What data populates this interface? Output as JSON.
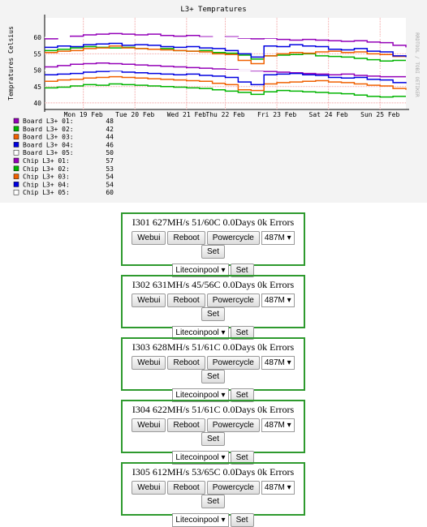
{
  "chart_data": {
    "type": "line",
    "title": "L3+ Tempratures",
    "y_label": "Tempratures Celsius",
    "watermark": "RRDTOOL / TOBI OETIKER",
    "categories": [
      null,
      null,
      null,
      "Mon 19 Feb",
      null,
      null,
      null,
      "Tue 20 Feb",
      null,
      null,
      null,
      "Wed 21 Feb",
      null,
      null,
      "Thu 22 Feb",
      null,
      null,
      null,
      "Fri 23 Feb",
      null,
      null,
      null,
      "Sat 24 Feb",
      null,
      null,
      null,
      "Sun 25 Feb",
      null,
      null
    ],
    "ylim": [
      38,
      66
    ],
    "yticks": [
      40,
      45,
      50,
      55,
      60
    ],
    "grid": true,
    "series": [
      {
        "name": "Board L3+ 01:",
        "last": 48,
        "color": "#9400b8",
        "values": [
          51,
          51.4,
          51.8,
          52,
          52.2,
          52,
          51.8,
          51.6,
          51.4,
          51.2,
          51,
          50.8,
          50.6,
          50.4,
          50.2,
          50,
          49.8,
          49.6,
          49.4,
          49.2,
          49,
          48.8,
          48.6,
          48.8,
          48.4,
          48.2,
          48,
          48,
          48
        ]
      },
      {
        "name": "Board L3+ 02:",
        "last": 42,
        "color": "#00b400",
        "values": [
          44.6,
          44.8,
          45.2,
          45.6,
          45.4,
          45.8,
          45.6,
          45.4,
          45.2,
          45,
          44.8,
          44.6,
          44.4,
          44,
          43.6,
          43.2,
          42.6,
          43.4,
          43.8,
          43.6,
          43.4,
          43.2,
          43,
          42.8,
          42.4,
          42,
          41.8,
          42,
          42
        ]
      },
      {
        "name": "Board L3+ 03:",
        "last": 44,
        "color": "#f06000",
        "values": [
          46.6,
          47,
          47.2,
          47.6,
          47.8,
          48,
          47.8,
          47.6,
          47.4,
          47.2,
          47,
          46.8,
          46.6,
          46,
          45.6,
          44,
          43.8,
          45.8,
          46.2,
          46.4,
          46.6,
          46.8,
          46.4,
          46.2,
          45.8,
          45.4,
          45.2,
          44.4,
          44
        ]
      },
      {
        "name": "Board L3+ 04:",
        "last": 46,
        "color": "#0000e0",
        "values": [
          48.6,
          48.8,
          49,
          49.4,
          49.6,
          49.8,
          49.4,
          49.2,
          49,
          48.8,
          48.6,
          48.8,
          48.4,
          48.2,
          47.8,
          46.4,
          45.6,
          48.6,
          48.8,
          49,
          48.6,
          48.4,
          47.8,
          47.6,
          47.8,
          47.2,
          47,
          46.2,
          46
        ]
      },
      {
        "name": "Board L3+ 05:",
        "last": 50,
        "color": "#ffffff",
        "values": [
          50,
          50,
          50,
          50,
          50,
          50,
          50,
          50,
          50,
          50,
          50,
          50,
          50,
          50,
          50,
          50,
          50,
          50,
          50,
          50,
          50,
          50,
          50,
          50,
          50,
          50,
          50,
          50,
          50
        ]
      },
      {
        "name": "Chip L3+ 01:",
        "last": 57,
        "color": "#9400b8",
        "values": [
          59.6,
          60,
          60.4,
          60.8,
          61,
          61.2,
          61,
          60.8,
          61,
          60.6,
          60.4,
          60.6,
          60.2,
          60,
          60.2,
          59.8,
          59.6,
          59.8,
          59.4,
          59.2,
          59.4,
          59.2,
          59,
          58.8,
          59,
          58.6,
          58.4,
          57.6,
          57
        ]
      },
      {
        "name": "Chip L3+ 02:",
        "last": 53,
        "color": "#00b400",
        "values": [
          56,
          56.4,
          56.8,
          57.2,
          57,
          56.8,
          57,
          56.6,
          56.4,
          56.6,
          56,
          55.8,
          56,
          55.4,
          55.2,
          54.6,
          53.4,
          54.4,
          54.6,
          54.8,
          55,
          54.4,
          54.2,
          54,
          53.6,
          53.2,
          52.8,
          53,
          53
        ]
      },
      {
        "name": "Chip L3+ 03:",
        "last": 54,
        "color": "#f06000",
        "values": [
          55.4,
          55.8,
          56,
          56.6,
          56.8,
          57.4,
          56.8,
          56.6,
          56.4,
          56.2,
          56,
          55.8,
          55.6,
          55,
          54.8,
          53,
          52,
          54.4,
          55,
          55.4,
          55.2,
          55.6,
          55.8,
          55.4,
          55.6,
          55,
          54.8,
          54.2,
          54
        ]
      },
      {
        "name": "Chip L3+ 04:",
        "last": 54,
        "color": "#0000e0",
        "values": [
          57,
          57.4,
          57.2,
          57.8,
          58,
          58.2,
          57.6,
          57.8,
          57.6,
          57.2,
          57,
          57.2,
          56.8,
          56.6,
          56,
          55,
          54,
          57.4,
          57.2,
          57.8,
          57.4,
          57.2,
          56.4,
          56.2,
          56.6,
          55.8,
          55.6,
          54.4,
          54
        ]
      },
      {
        "name": "Chip L3+ 05:",
        "last": 60,
        "color": "#ffffff",
        "values": [
          60,
          60,
          60,
          60,
          60,
          60,
          60,
          60,
          60,
          60,
          60,
          60,
          60,
          60,
          60,
          60,
          60,
          60,
          60,
          60,
          60,
          60,
          60,
          60,
          60,
          60,
          60,
          60,
          60
        ]
      }
    ]
  },
  "miners": [
    {
      "title": "I301 627MH/s 51/60C 0.0Days 0k Errors"
    },
    {
      "title": "I302 631MH/s 45/56C 0.0Days 0k Errors"
    },
    {
      "title": "I303 628MH/s 51/61C 0.0Days 0k Errors"
    },
    {
      "title": "I304 622MH/s 51/61C 0.0Days 0k Errors"
    },
    {
      "title": "I305 612MH/s 53/65C 0.0Days 0k Errors"
    }
  ],
  "controls": {
    "webui": "Webui",
    "reboot": "Reboot",
    "powercycle": "Powercycle",
    "freq": "487M",
    "set": "Set",
    "pool": "Litecoinpool"
  }
}
